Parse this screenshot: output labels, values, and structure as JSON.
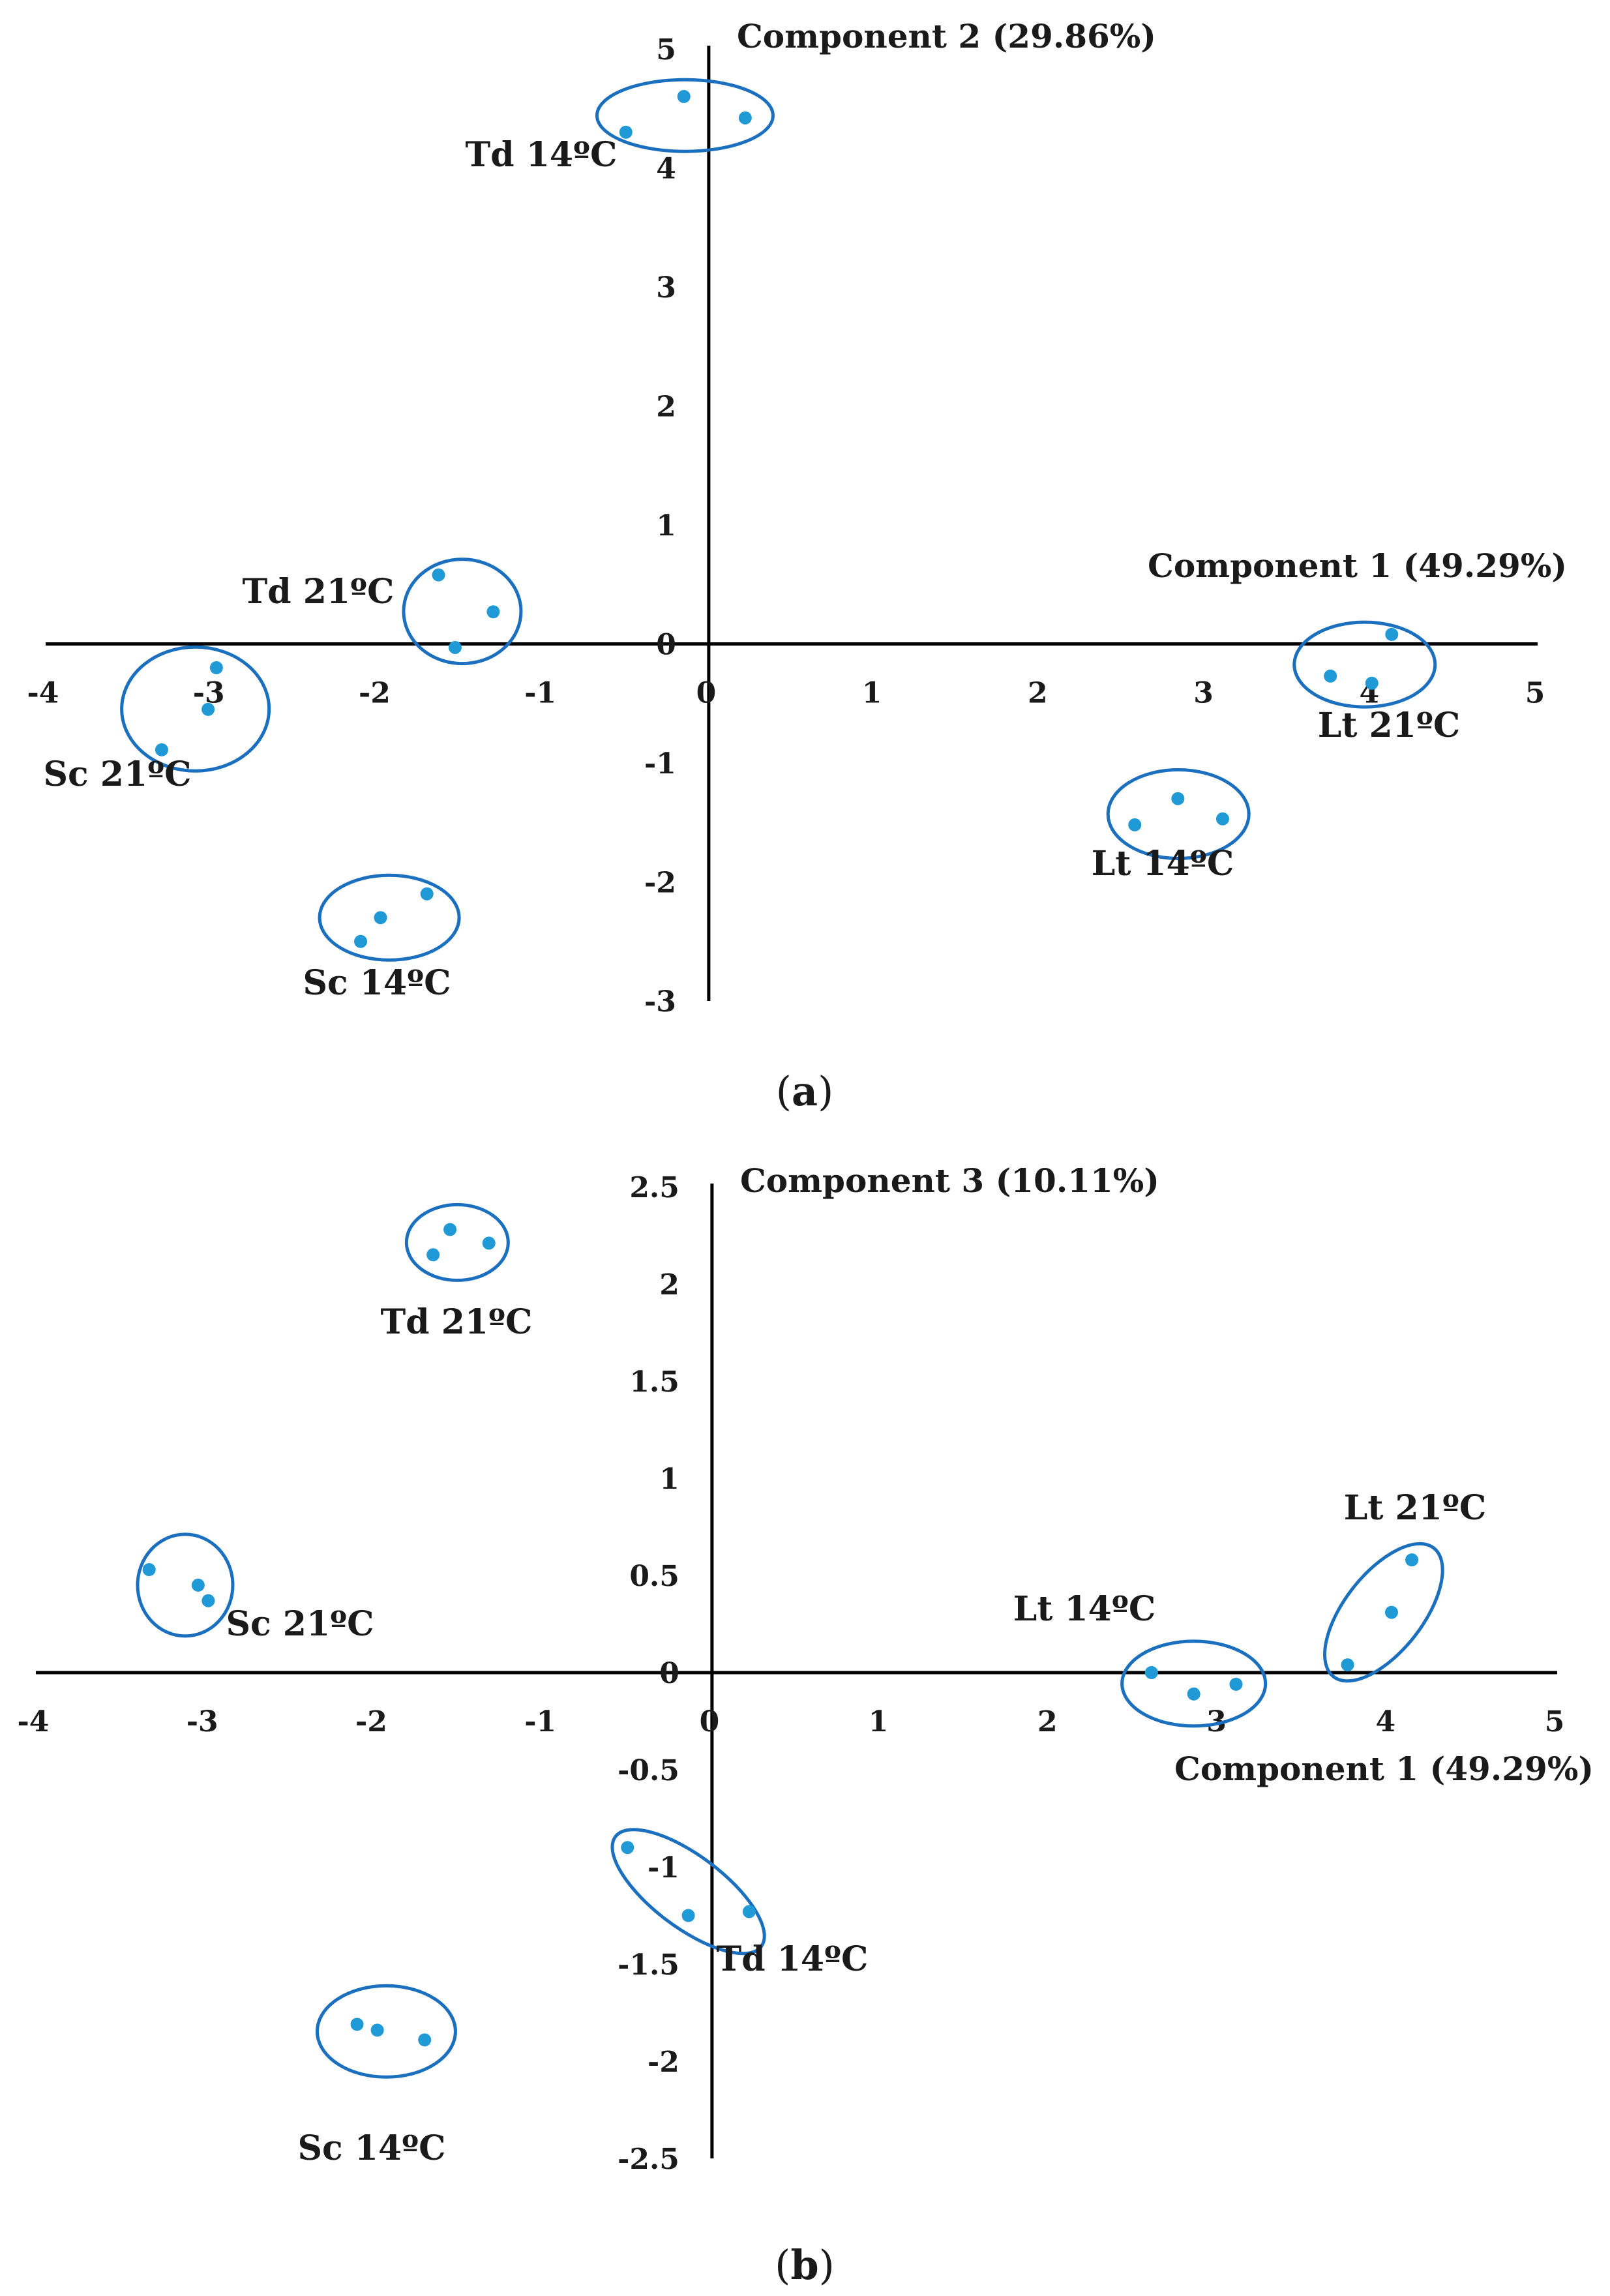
{
  "chart_data": [
    {
      "type": "scatter",
      "panel_label": "a",
      "xlabel": "Component 1 (49.29%)",
      "ylabel": "Component 2 (29.86%)",
      "xlim": [
        -4,
        5
      ],
      "ylim": [
        -3,
        5
      ],
      "x_ticks": [
        "-4",
        "-3",
        "-2",
        "-1",
        "0",
        "1",
        "2",
        "3",
        "4",
        "5"
      ],
      "y_ticks": [
        "-3",
        "-2",
        "-1",
        "0",
        "1",
        "2",
        "3",
        "4",
        "5"
      ],
      "point_color": "#1f9ad6",
      "ellipse_color": "#1b6fbf",
      "groups": [
        {
          "name": "Td 14ºC",
          "label": "Td 14ºC",
          "points": [
            [
              -0.5,
              4.3
            ],
            [
              -0.15,
              4.6
            ],
            [
              0.22,
              4.42
            ]
          ]
        },
        {
          "name": "Td 21ºC",
          "label": "Td 21ºC",
          "points": [
            [
              -1.63,
              0.58
            ],
            [
              -1.3,
              0.27
            ],
            [
              -1.53,
              -0.03
            ]
          ]
        },
        {
          "name": "Sc 21ºC",
          "label": "Sc 21ºC",
          "points": [
            [
              -2.97,
              -0.2
            ],
            [
              -3.02,
              -0.55
            ],
            [
              -3.3,
              -0.89
            ]
          ]
        },
        {
          "name": "Sc 14ºC",
          "label": "Sc 14ºC",
          "points": [
            [
              -1.7,
              -2.1
            ],
            [
              -1.98,
              -2.3
            ],
            [
              -2.1,
              -2.5
            ]
          ]
        },
        {
          "name": "Lt 14ºC",
          "label": "Lt 14ºC",
          "points": [
            [
              2.57,
              -1.52
            ],
            [
              2.83,
              -1.3
            ],
            [
              3.1,
              -1.47
            ]
          ]
        },
        {
          "name": "Lt 21ºC",
          "label": "Lt 21ºC",
          "points": [
            [
              3.75,
              -0.27
            ],
            [
              4.0,
              -0.33
            ],
            [
              4.12,
              0.08
            ]
          ]
        }
      ]
    },
    {
      "type": "scatter",
      "panel_label": "b",
      "xlabel": "Component 1 (49.29%)",
      "ylabel": "Component 3 (10.11%)",
      "xlim": [
        -4,
        5
      ],
      "ylim": [
        -2.5,
        2.5
      ],
      "x_ticks": [
        "-4",
        "-3",
        "-2",
        "-1",
        "0",
        "1",
        "2",
        "3",
        "4",
        "5"
      ],
      "y_ticks": [
        "-2.5",
        "-2",
        "-1.5",
        "-1",
        "-0.5",
        "0",
        "0.5",
        "1",
        "1.5",
        "2",
        "2.5"
      ],
      "point_color": "#1f9ad6",
      "ellipse_color": "#1b6fbf",
      "groups": [
        {
          "name": "Td 21ºC",
          "label": "Td 21ºC",
          "points": [
            [
              -1.55,
              2.28
            ],
            [
              -1.65,
              2.15
            ],
            [
              -1.32,
              2.21
            ]
          ]
        },
        {
          "name": "Sc 21ºC",
          "label": "Sc 21ºC",
          "points": [
            [
              -3.33,
              0.53
            ],
            [
              -3.04,
              0.45
            ],
            [
              -2.98,
              0.37
            ]
          ]
        },
        {
          "name": "Lt 14ºC",
          "label": "Lt 14ºC",
          "points": [
            [
              2.6,
              0.0
            ],
            [
              2.85,
              -0.11
            ],
            [
              3.1,
              -0.06
            ]
          ]
        },
        {
          "name": "Lt 21ºC",
          "label": "Lt 21ºC",
          "points": [
            [
              3.76,
              0.04
            ],
            [
              4.02,
              0.31
            ],
            [
              4.14,
              0.58
            ]
          ]
        },
        {
          "name": "Td 14ºC",
          "label": "Td 14ºC",
          "points": [
            [
              -0.5,
              -0.9
            ],
            [
              -0.14,
              -1.25
            ],
            [
              0.22,
              -1.23
            ]
          ]
        },
        {
          "name": "Sc 14ºC",
          "label": "Sc 14ºC",
          "points": [
            [
              -2.1,
              -1.81
            ],
            [
              -1.98,
              -1.84
            ],
            [
              -1.7,
              -1.89
            ]
          ]
        }
      ]
    }
  ]
}
